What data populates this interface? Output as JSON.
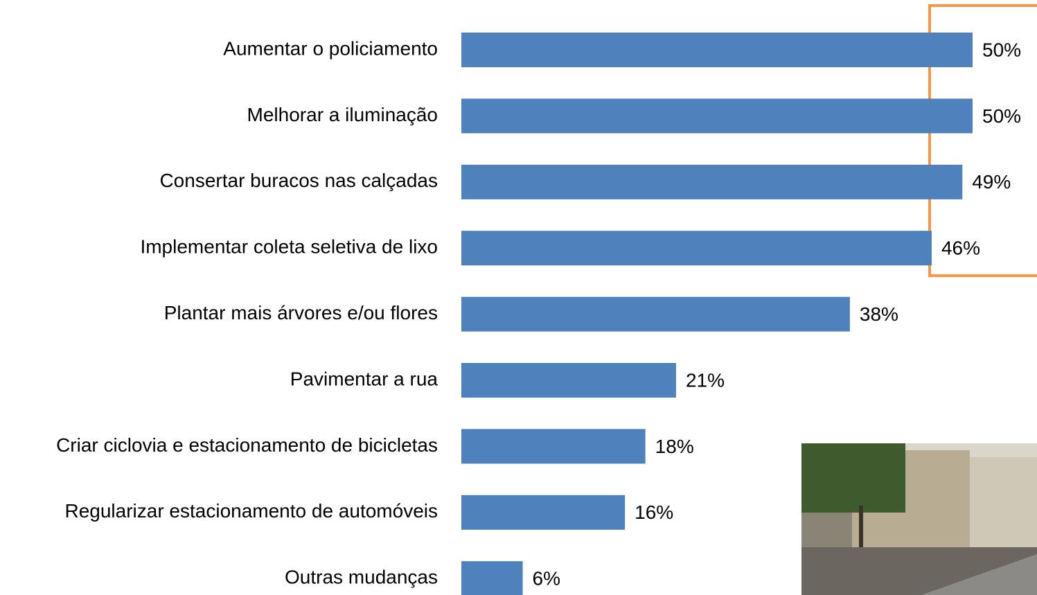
{
  "chart_data": {
    "type": "bar",
    "color": "#4f81bd",
    "categories": [
      "Aumentar o policiamento",
      "Melhorar a iluminação",
      "Consertar buracos nas calçadas",
      "Implementar coleta seletiva de lixo",
      "Plantar mais árvores e/ou flores",
      "Pavimentar a rua",
      "Criar ciclovia e estacionamento de bicicletas",
      "Regularizar estacionamento de automóveis",
      "Outras mudanças"
    ],
    "values": [
      50,
      50,
      49,
      46,
      38,
      21,
      18,
      16,
      6
    ],
    "value_labels": [
      "50%",
      "50%",
      "49%",
      "46%",
      "38%",
      "21%",
      "18%",
      "16%",
      "6%"
    ]
  }
}
